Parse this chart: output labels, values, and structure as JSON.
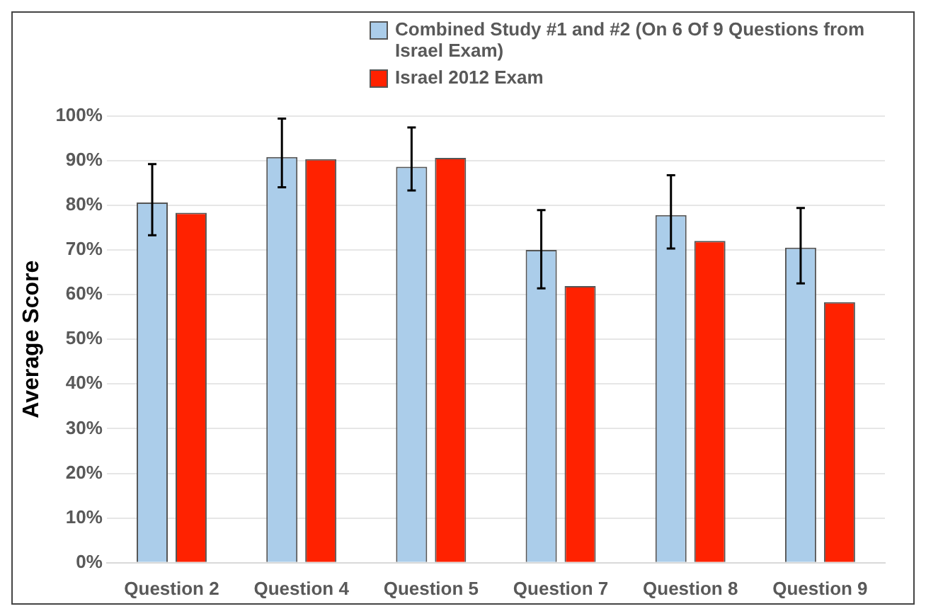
{
  "chart_data": {
    "type": "bar",
    "ylabel": "Average Score",
    "categories": [
      "Question 2",
      "Question 4",
      "Question 5",
      "Question 7",
      "Question 8",
      "Question 9"
    ],
    "series": [
      {
        "name": "Combined Study #1 and #2 (On 6 Of 9 Questions from Israel Exam)",
        "color": "#abcdea",
        "values": [
          80.6,
          90.8,
          88.6,
          70.0,
          77.8,
          70.5
        ],
        "errors": [
          [
            73.3,
            89.2
          ],
          [
            84.0,
            99.4
          ],
          [
            83.3,
            97.4
          ],
          [
            61.4,
            78.9
          ],
          [
            70.3,
            86.7
          ],
          [
            62.5,
            79.4
          ]
        ]
      },
      {
        "name": "Israel 2012 Exam",
        "color": "#ff2200",
        "values": [
          78.3,
          90.3,
          90.6,
          61.9,
          72.0,
          58.3
        ]
      }
    ],
    "ylim": [
      0,
      100
    ],
    "yticks": [
      {
        "value": 0,
        "label": "0%"
      },
      {
        "value": 10,
        "label": "10%"
      },
      {
        "value": 20,
        "label": "20%"
      },
      {
        "value": 30,
        "label": "30%"
      },
      {
        "value": 40,
        "label": "40%"
      },
      {
        "value": 50,
        "label": "50%"
      },
      {
        "value": 60,
        "label": "60%"
      },
      {
        "value": 70,
        "label": "70%"
      },
      {
        "value": 80,
        "label": "80%"
      },
      {
        "value": 90,
        "label": "90%"
      },
      {
        "value": 100,
        "label": "100%"
      }
    ],
    "grid": "y",
    "legend": "top right"
  }
}
